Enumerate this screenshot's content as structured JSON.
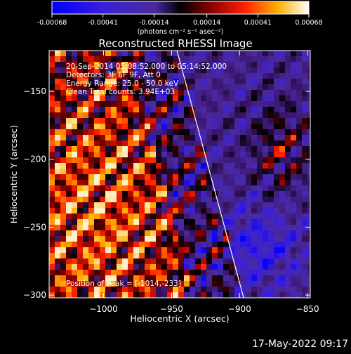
{
  "colorbar": {
    "ticks": [
      "-0.00068",
      "-0.00041",
      "-0.00014",
      "0.00014",
      "0.00041",
      "0.00068"
    ],
    "unit_label": "(photons cm⁻² s⁻¹ asec⁻²)",
    "range": [
      -0.00068,
      0.00068
    ]
  },
  "chart_data": {
    "type": "heatmap",
    "title": "Reconstructed RHESSI Image",
    "xlabel": "Heliocentric X (arcsec)",
    "ylabel": "Heliocentric Y (arcsec)",
    "xlim": [
      -1040,
      -848
    ],
    "ylim": [
      -302,
      -120
    ],
    "x_ticks": [
      -1000,
      -950,
      -900,
      -850
    ],
    "y_ticks": [
      -150,
      -200,
      -250,
      -300
    ],
    "x_tick_labels": [
      "−1000",
      "−950",
      "−900",
      "−850"
    ],
    "y_tick_labels": [
      "−150",
      "−200",
      "−250",
      "−300"
    ],
    "annotations": [
      "20-Sep-2014 05:08:52.000 to 05:14:52.000",
      "Detectors: 3F 6F 9F, Att 0",
      "Energy Range: 25.0 - 50.0 keV",
      "Clean    Total counts: 3.94E+03"
    ],
    "peak_label": "Position of Peak = [-1014,-233]",
    "peak": {
      "x": -1014,
      "y": -233
    },
    "limb_line": [
      {
        "x": -946,
        "y": -120
      },
      {
        "x": -897,
        "y": -302
      }
    ],
    "grid": false,
    "colormap": "blue-purple-black-red-yellow-white"
  },
  "footer_timestamp": "17-May-2022 09:17"
}
